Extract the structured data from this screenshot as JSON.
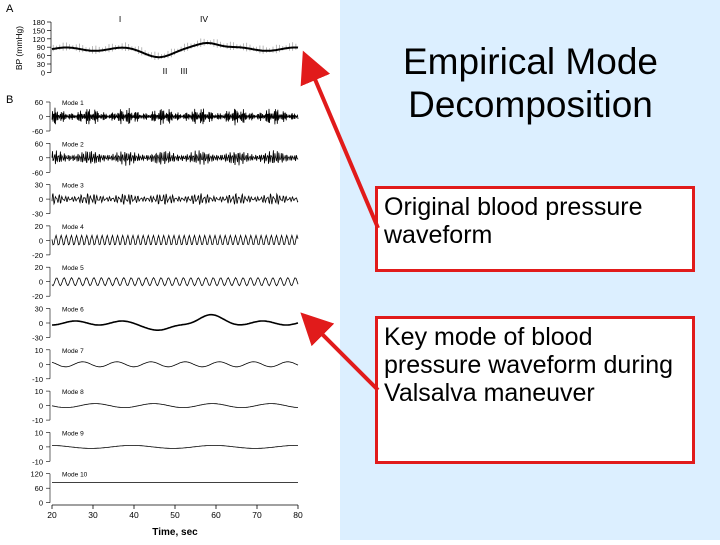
{
  "slide": {
    "title": "Empirical Mode Decomposition",
    "callouts": [
      "Original blood pressure waveform",
      "Key mode of blood pressure waveform during Valsalva maneuver"
    ],
    "accent_color": "#e11b1b",
    "panel_color": "#dcefff"
  },
  "chart_data": {
    "type": "line",
    "panels": {
      "A": {
        "label": "A",
        "ylabel": "BP (mmHg)",
        "ticks": [
          "180",
          "150",
          "120",
          "90",
          "60",
          "30",
          "0"
        ],
        "phase_labels": [
          "I",
          "IV",
          "II",
          "III"
        ]
      },
      "B": {
        "label": "B",
        "modes": [
          {
            "name": "Mode 1",
            "ticks": [
              "60",
              "0",
              "-60"
            ]
          },
          {
            "name": "Mode 2",
            "ticks": [
              "60",
              "0",
              "-60"
            ]
          },
          {
            "name": "Mode 3",
            "ticks": [
              "30",
              "0",
              "-30"
            ]
          },
          {
            "name": "Mode 4",
            "ticks": [
              "20",
              "0",
              "-20"
            ]
          },
          {
            "name": "Mode 5",
            "ticks": [
              "20",
              "0",
              "-20"
            ]
          },
          {
            "name": "Mode 6",
            "ticks": [
              "30",
              "0",
              "-30"
            ]
          },
          {
            "name": "Mode 7",
            "ticks": [
              "10",
              "0",
              "-10"
            ]
          },
          {
            "name": "Mode 8",
            "ticks": [
              "10",
              "0",
              "-10"
            ]
          },
          {
            "name": "Mode 9",
            "ticks": [
              "10",
              "0",
              "-10"
            ]
          },
          {
            "name": "Mode 10",
            "ticks": [
              "120",
              "60",
              "0"
            ]
          }
        ]
      }
    },
    "xlabel": "Time, sec",
    "xticks": [
      "20",
      "30",
      "40",
      "50",
      "60",
      "70",
      "80"
    ],
    "xlim": [
      20,
      80
    ]
  }
}
